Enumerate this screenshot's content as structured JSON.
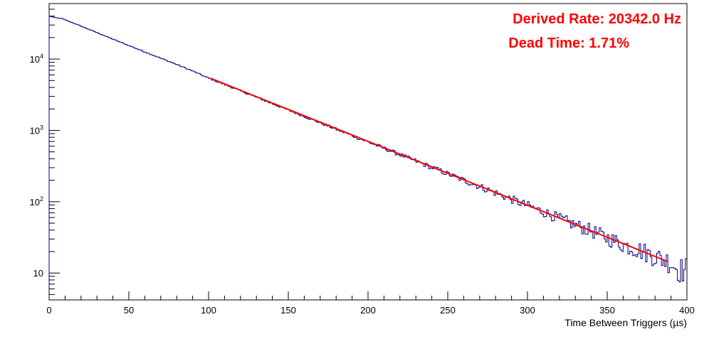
{
  "chart_data": {
    "type": "histogram",
    "xlabel": "Time Between Triggers (µs)",
    "ylabel": "",
    "xlim": [
      0,
      400
    ],
    "ylim": [
      4.2,
      60000
    ],
    "y_scale": "log",
    "x_ticks": [
      0,
      50,
      100,
      150,
      200,
      250,
      300,
      350,
      400
    ],
    "x_tick_labels": [
      "0",
      "50",
      "100",
      "150",
      "200",
      "250",
      "300",
      "350",
      "400"
    ],
    "y_ticks": [
      10,
      100,
      1000,
      10000
    ],
    "y_tick_labels": [
      {
        "base": "10",
        "exp": ""
      },
      {
        "base": "10",
        "exp": "2"
      },
      {
        "base": "10",
        "exp": "3"
      },
      {
        "base": "10",
        "exp": "4"
      }
    ],
    "grid": false,
    "annotations": [
      {
        "text": "Derived Rate: 20342.0 Hz",
        "color": "#ff0000",
        "position": "top-right"
      },
      {
        "text": "Dead Time: 1.71%",
        "color": "#ff0000",
        "position": "top-right"
      }
    ],
    "series": [
      {
        "type": "histogram",
        "color": "#000080",
        "bin_width": 1,
        "x": [
          0,
          2,
          4,
          6,
          8,
          10,
          20,
          30,
          40,
          50,
          60,
          70,
          80,
          90,
          100,
          110,
          120,
          130,
          140,
          150,
          160,
          170,
          180,
          190,
          200,
          210,
          220,
          230,
          240,
          250,
          260,
          270,
          280,
          290,
          300,
          310,
          320,
          330,
          340,
          350,
          360,
          370,
          380,
          390,
          395,
          400
        ],
        "values": [
          40000,
          39000,
          38000,
          37500,
          37000,
          35500,
          29000,
          23500,
          19000,
          15500,
          12600,
          10300,
          8400,
          6800,
          5400,
          4400,
          3580,
          2910,
          2370,
          1930,
          1570,
          1280,
          1040,
          848,
          690,
          562,
          457,
          372,
          303,
          246,
          200,
          163,
          133,
          108,
          88,
          72,
          58,
          47,
          39,
          31,
          25,
          21,
          17,
          14,
          11,
          11
        ]
      },
      {
        "type": "line",
        "color": "#ff0000",
        "fit": "exponential",
        "x": [
          101,
          388
        ],
        "values": [
          5400,
          14.5
        ]
      }
    ]
  }
}
